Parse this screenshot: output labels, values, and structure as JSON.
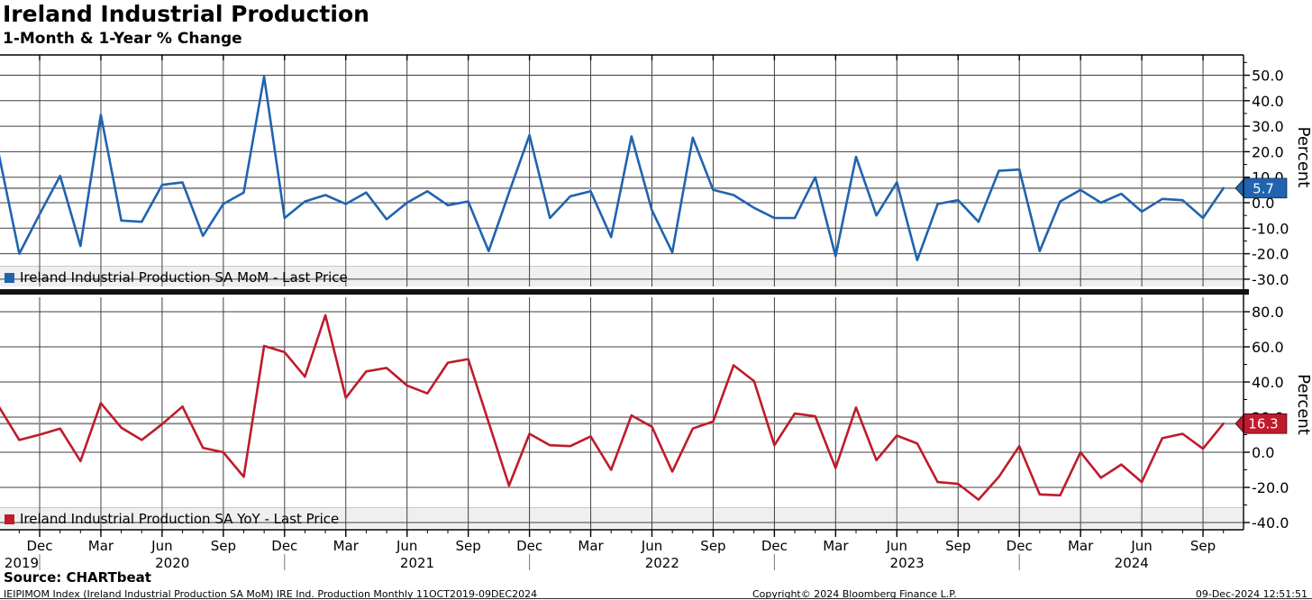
{
  "header": {
    "title": "Ireland Industrial Production",
    "subtitle": "1-Month & 1-Year % Change"
  },
  "colors": {
    "mom_blue": "#2063af",
    "yoy_red": "#bf1b2c",
    "gridline": "#404040",
    "axis": "#000000",
    "legend_band": "#efefef",
    "last_price_line": "#8f8f8f",
    "separator": "#111111",
    "badge_text": "#ffffff"
  },
  "panels": [
    {
      "id": "mom",
      "legend": "Ireland Industrial Production SA MoM - Last Price",
      "axis_label": "Percent",
      "last_price": "5.7",
      "y_ticks": [
        50,
        40,
        30,
        20,
        10,
        0,
        -10,
        -20,
        -30
      ]
    },
    {
      "id": "yoy",
      "legend": "Ireland Industrial Production SA YoY - Last Price",
      "axis_label": "Percent",
      "last_price": "16.3",
      "y_ticks": [
        80,
        60,
        40,
        20,
        0,
        -20,
        -40
      ]
    }
  ],
  "x_axis": {
    "quarter_tick_labels": [
      "Dec",
      "Mar",
      "Jun",
      "Sep",
      "Dec",
      "Mar",
      "Jun",
      "Sep",
      "Dec",
      "Mar",
      "Jun",
      "Sep",
      "Dec",
      "Mar",
      "Jun",
      "Sep",
      "Dec",
      "Mar",
      "Jun",
      "Sep"
    ],
    "year_labels": [
      "2019",
      "2020",
      "2021",
      "2022",
      "2023",
      "2024"
    ]
  },
  "chart_data": [
    {
      "type": "line",
      "title": "Ireland Industrial Production SA MoM - Last Price",
      "ylabel": "Percent",
      "ylim": [
        -33,
        58
      ],
      "grid": true,
      "x": [
        "2019-10",
        "2019-11",
        "2019-12",
        "2020-01",
        "2020-02",
        "2020-03",
        "2020-04",
        "2020-05",
        "2020-06",
        "2020-07",
        "2020-08",
        "2020-09",
        "2020-10",
        "2020-11",
        "2020-12",
        "2021-01",
        "2021-02",
        "2021-03",
        "2021-04",
        "2021-05",
        "2021-06",
        "2021-07",
        "2021-08",
        "2021-09",
        "2021-10",
        "2021-11",
        "2021-12",
        "2022-01",
        "2022-02",
        "2022-03",
        "2022-04",
        "2022-05",
        "2022-06",
        "2022-07",
        "2022-08",
        "2022-09",
        "2022-10",
        "2022-11",
        "2022-12",
        "2023-01",
        "2023-02",
        "2023-03",
        "2023-04",
        "2023-05",
        "2023-06",
        "2023-07",
        "2023-08",
        "2023-09",
        "2023-10",
        "2023-11",
        "2023-12",
        "2024-01",
        "2024-02",
        "2024-03",
        "2024-04",
        "2024-05",
        "2024-06",
        "2024-07",
        "2024-08",
        "2024-09",
        "2024-10"
      ],
      "values": [
        19,
        -20,
        -4.5,
        10.5,
        -17,
        34.5,
        -7,
        -7.5,
        7,
        8,
        -13,
        -0.5,
        4,
        49.5,
        -6,
        0.5,
        3,
        -0.5,
        4,
        -6.5,
        0,
        4.5,
        -1,
        0.5,
        -19,
        4,
        26.5,
        -6,
        2.5,
        4.5,
        -13.5,
        26,
        -3,
        -19.5,
        25.5,
        5,
        3,
        -2,
        -6,
        -6,
        10,
        -21,
        18,
        -5,
        8,
        -22.5,
        -0.5,
        1,
        -7.5,
        12.5,
        13,
        -19,
        0.5,
        5,
        0,
        3.5,
        -3.5,
        1.5,
        1,
        -6,
        5.7
      ]
    },
    {
      "type": "line",
      "title": "Ireland Industrial Production SA YoY - Last Price",
      "ylabel": "Percent",
      "ylim": [
        -43,
        88
      ],
      "grid": true,
      "x": [
        "2019-10",
        "2019-11",
        "2019-12",
        "2020-01",
        "2020-02",
        "2020-03",
        "2020-04",
        "2020-05",
        "2020-06",
        "2020-07",
        "2020-08",
        "2020-09",
        "2020-10",
        "2020-11",
        "2020-12",
        "2021-01",
        "2021-02",
        "2021-03",
        "2021-04",
        "2021-05",
        "2021-06",
        "2021-07",
        "2021-08",
        "2021-09",
        "2021-10",
        "2021-11",
        "2021-12",
        "2022-01",
        "2022-02",
        "2022-03",
        "2022-04",
        "2022-05",
        "2022-06",
        "2022-07",
        "2022-08",
        "2022-09",
        "2022-10",
        "2022-11",
        "2022-12",
        "2023-01",
        "2023-02",
        "2023-03",
        "2023-04",
        "2023-05",
        "2023-06",
        "2023-07",
        "2023-08",
        "2023-09",
        "2023-10",
        "2023-11",
        "2023-12",
        "2024-01",
        "2024-02",
        "2024-03",
        "2024-04",
        "2024-05",
        "2024-06",
        "2024-07",
        "2024-08",
        "2024-09",
        "2024-10"
      ],
      "values": [
        26,
        7,
        10,
        13.5,
        -5,
        28,
        14,
        7,
        16,
        26,
        2.5,
        0,
        -14,
        60.5,
        57,
        43,
        78,
        31,
        46,
        48,
        38,
        33.5,
        51,
        53,
        17,
        -19,
        10.5,
        4,
        3.5,
        9,
        -10,
        21,
        14.5,
        -11,
        13.5,
        17.5,
        49.5,
        40.5,
        4,
        22,
        20.5,
        -9,
        25.5,
        -4.5,
        9.5,
        5,
        -17,
        -18,
        -27,
        -14,
        3.5,
        -24,
        -24.5,
        0,
        -14.5,
        -7,
        -17,
        8,
        10.5,
        2,
        16.3
      ]
    }
  ],
  "footer": {
    "source": "Source: CHARTbeat",
    "description": "IEIPIMOM Index (Ireland Industrial Production SA MoM) IRE Ind. Production  Monthly 11OCT2019-09DEC2024",
    "copyright": "Copyright© 2024 Bloomberg Finance L.P.",
    "timestamp": "09-Dec-2024 12:51:51"
  }
}
